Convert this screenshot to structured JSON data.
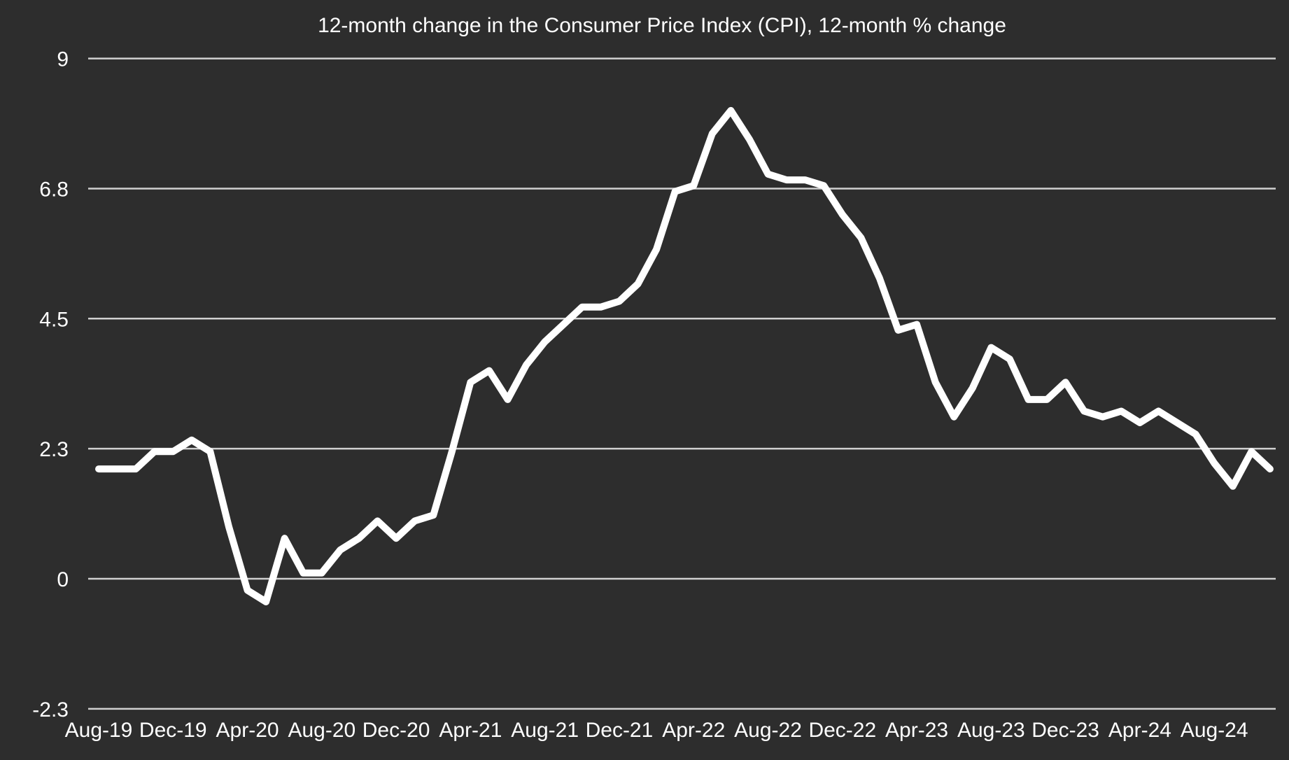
{
  "chart_data": {
    "type": "line",
    "title": "12-month change in the Consumer Price Index (CPI), 12-month % change",
    "xlabel": "",
    "ylabel": "",
    "ylim": [
      -2.25,
      9
    ],
    "grid": "horizontal-only",
    "legend_position": "none",
    "x": [
      "Aug-19",
      "Sep-19",
      "Oct-19",
      "Nov-19",
      "Dec-19",
      "Jan-20",
      "Feb-20",
      "Mar-20",
      "Apr-20",
      "May-20",
      "Jun-20",
      "Jul-20",
      "Aug-20",
      "Sep-20",
      "Oct-20",
      "Nov-20",
      "Dec-20",
      "Jan-21",
      "Feb-21",
      "Mar-21",
      "Apr-21",
      "May-21",
      "Jun-21",
      "Jul-21",
      "Aug-21",
      "Sep-21",
      "Oct-21",
      "Nov-21",
      "Dec-21",
      "Jan-22",
      "Feb-22",
      "Mar-22",
      "Apr-22",
      "May-22",
      "Jun-22",
      "Jul-22",
      "Aug-22",
      "Sep-22",
      "Oct-22",
      "Nov-22",
      "Dec-22",
      "Jan-23",
      "Feb-23",
      "Mar-23",
      "Apr-23",
      "May-23",
      "Jun-23",
      "Jul-23",
      "Aug-23",
      "Sep-23",
      "Oct-23",
      "Nov-23",
      "Dec-23",
      "Jan-24",
      "Feb-24",
      "Mar-24",
      "Apr-24",
      "May-24",
      "Jun-24",
      "Jul-24",
      "Aug-24",
      "Sep-24",
      "Oct-24",
      "Nov-24"
    ],
    "series": [
      {
        "name": "CPI 12-month % change",
        "values": [
          1.9,
          1.9,
          1.9,
          2.2,
          2.2,
          2.4,
          2.2,
          0.9,
          -0.2,
          -0.4,
          0.7,
          0.1,
          0.1,
          0.5,
          0.7,
          1.0,
          0.7,
          1.0,
          1.1,
          2.2,
          3.4,
          3.6,
          3.1,
          3.7,
          4.1,
          4.4,
          4.7,
          4.7,
          4.8,
          5.1,
          5.7,
          6.7,
          6.8,
          7.7,
          8.1,
          7.6,
          7.0,
          6.9,
          6.9,
          6.8,
          6.3,
          5.9,
          5.2,
          4.3,
          4.4,
          3.4,
          2.8,
          3.3,
          4.0,
          3.8,
          3.1,
          3.1,
          3.4,
          2.9,
          2.8,
          2.9,
          2.7,
          2.9,
          2.7,
          2.5,
          2.0,
          1.6,
          2.2,
          1.9
        ]
      }
    ],
    "x_tick_labels": [
      "Aug-19",
      "Dec-19",
      "Apr-20",
      "Aug-20",
      "Dec-20",
      "Apr-21",
      "Aug-21",
      "Dec-21",
      "Apr-22",
      "Aug-22",
      "Dec-22",
      "Apr-23",
      "Aug-23",
      "Dec-23",
      "Apr-24",
      "Aug-24"
    ],
    "x_tick_every": 4,
    "y_ticks": [
      {
        "label": "-2.3",
        "value": -2.25
      },
      {
        "label": "0",
        "value": 0
      },
      {
        "label": "2.3",
        "value": 2.25
      },
      {
        "label": "4.5",
        "value": 4.5
      },
      {
        "label": "6.8",
        "value": 6.75
      },
      {
        "label": "9",
        "value": 9
      }
    ],
    "colors": {
      "background": "#2d2d2d",
      "gridline": "#d0d0d0",
      "text": "#ffffff",
      "line": "#ffffff"
    }
  }
}
